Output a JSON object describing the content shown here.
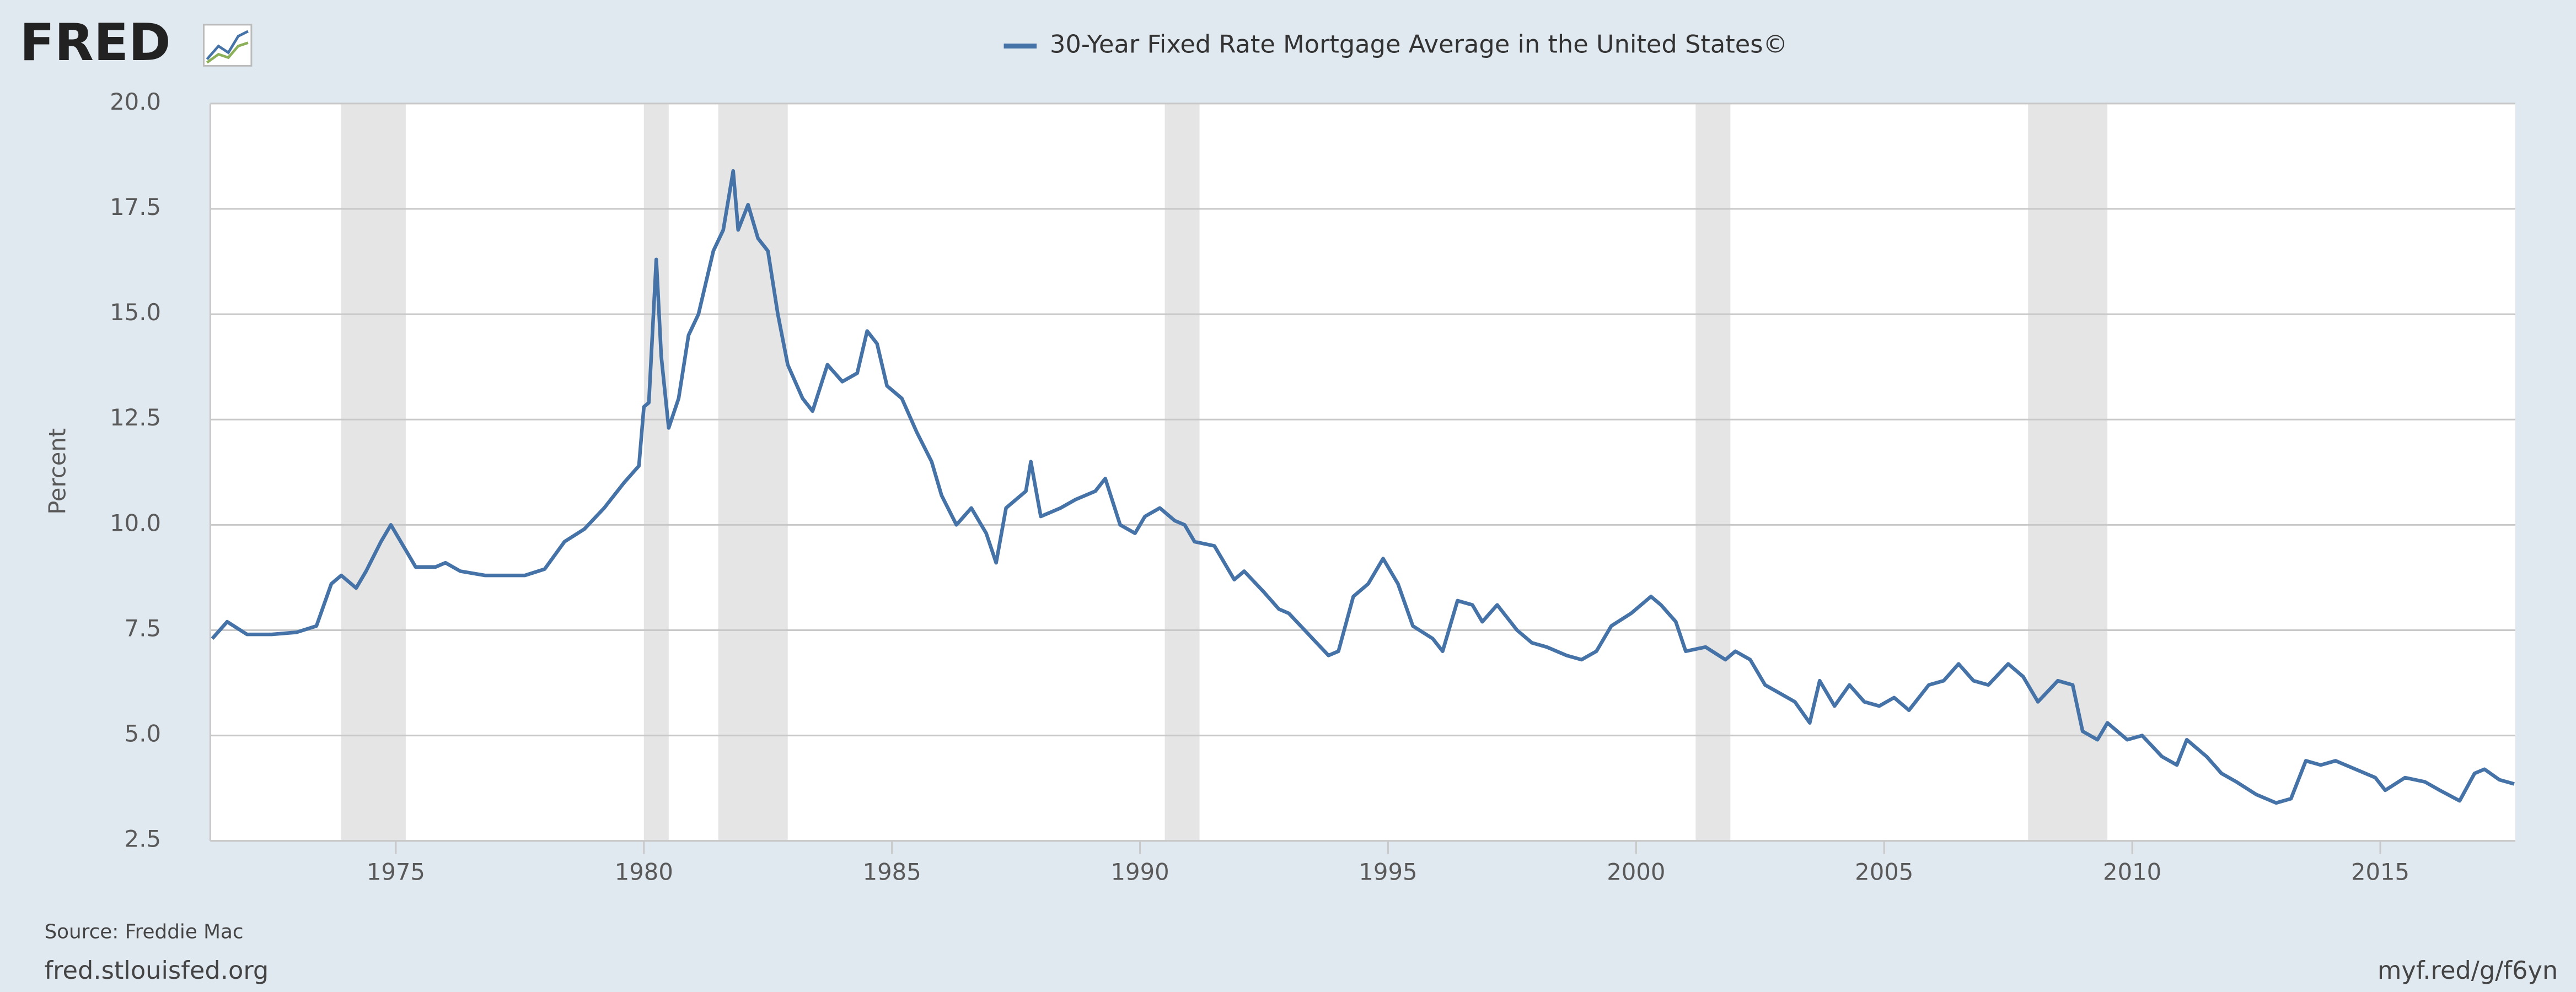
{
  "logo": "FRED",
  "chart_data": {
    "type": "line",
    "y_label": "Percent",
    "source": "Source: Freddie Mac",
    "site": "fred.stlouisfed.org",
    "short_url": "myf.red/g/f6yn",
    "xlim": [
      1971.26,
      2017.72
    ],
    "ylim": [
      2.5,
      20
    ],
    "xticks": [
      1975,
      1980,
      1985,
      1990,
      1995,
      2000,
      2005,
      2010,
      2015
    ],
    "yticks": [
      2.5,
      {
        "value": 5,
        "label": "5.0"
      },
      7.5,
      {
        "value": 10,
        "label": "10.0"
      },
      12.5,
      {
        "value": 15,
        "label": "15.0"
      },
      17.5,
      {
        "value": 20,
        "label": "20.0"
      }
    ],
    "grid": true,
    "recessions": [
      [
        1973.9,
        1975.2
      ],
      [
        1980.0,
        1980.5
      ],
      [
        1981.5,
        1982.9
      ],
      [
        1990.5,
        1991.2
      ],
      [
        2001.2,
        2001.9
      ],
      [
        2007.9,
        2009.5
      ]
    ],
    "x": [
      1971.3,
      1971.6,
      1972.0,
      1972.5,
      1973.0,
      1973.4,
      1973.7,
      1973.9,
      1974.2,
      1974.4,
      1974.7,
      1974.9,
      1975.1,
      1975.4,
      1975.8,
      1976.0,
      1976.3,
      1976.8,
      1977.2,
      1977.6,
      1978.0,
      1978.4,
      1978.8,
      1979.2,
      1979.6,
      1979.9,
      1980.0,
      1980.1,
      1980.25,
      1980.35,
      1980.5,
      1980.7,
      1980.9,
      1981.1,
      1981.4,
      1981.6,
      1981.8,
      1981.9,
      1982.1,
      1982.3,
      1982.5,
      1982.7,
      1982.9,
      1983.2,
      1983.4,
      1983.7,
      1984.0,
      1984.3,
      1984.5,
      1984.7,
      1984.9,
      1985.2,
      1985.5,
      1985.8,
      1986.0,
      1986.3,
      1986.6,
      1986.9,
      1987.1,
      1987.3,
      1987.7,
      1987.8,
      1988.0,
      1988.4,
      1988.7,
      1989.1,
      1989.3,
      1989.6,
      1989.9,
      1990.1,
      1990.4,
      1990.7,
      1990.9,
      1991.1,
      1991.5,
      1991.9,
      1992.1,
      1992.5,
      1992.8,
      1993.0,
      1993.4,
      1993.8,
      1994.0,
      1994.3,
      1994.6,
      1994.9,
      1995.2,
      1995.5,
      1995.9,
      1996.1,
      1996.4,
      1996.7,
      1996.9,
      1997.2,
      1997.6,
      1997.9,
      1998.2,
      1998.6,
      1998.9,
      1999.2,
      1999.5,
      1999.9,
      2000.3,
      2000.5,
      2000.8,
      2001.0,
      2001.4,
      2001.8,
      2002.0,
      2002.3,
      2002.6,
      2002.9,
      2003.2,
      2003.5,
      2003.7,
      2004.0,
      2004.3,
      2004.6,
      2004.9,
      2005.2,
      2005.5,
      2005.9,
      2006.2,
      2006.5,
      2006.8,
      2007.1,
      2007.5,
      2007.8,
      2008.1,
      2008.5,
      2008.8,
      2009.0,
      2009.3,
      2009.5,
      2009.9,
      2010.2,
      2010.6,
      2010.9,
      2011.1,
      2011.5,
      2011.8,
      2012.1,
      2012.5,
      2012.9,
      2013.2,
      2013.5,
      2013.8,
      2014.1,
      2014.5,
      2014.9,
      2015.1,
      2015.5,
      2015.9,
      2016.2,
      2016.6,
      2016.9,
      2017.1,
      2017.4,
      2017.7
    ],
    "series": [
      {
        "name": "30-Year Fixed Rate Mortgage Average in the United States©",
        "color": "#4572a7",
        "values": [
          7.3,
          7.7,
          7.4,
          7.4,
          7.45,
          7.6,
          8.6,
          8.8,
          8.5,
          8.9,
          9.6,
          10.0,
          9.6,
          9.0,
          9.0,
          9.1,
          8.9,
          8.8,
          8.8,
          8.8,
          8.95,
          9.6,
          9.9,
          10.4,
          11.0,
          11.4,
          12.8,
          12.9,
          16.3,
          14.0,
          12.3,
          13.0,
          14.5,
          15.0,
          16.5,
          17.0,
          18.4,
          17.0,
          17.6,
          16.8,
          16.5,
          15.0,
          13.8,
          13.0,
          12.7,
          13.8,
          13.4,
          13.6,
          14.6,
          14.3,
          13.3,
          13.0,
          12.2,
          11.5,
          10.7,
          10.0,
          10.4,
          9.8,
          9.1,
          10.4,
          10.8,
          11.5,
          10.2,
          10.4,
          10.6,
          10.8,
          11.1,
          10.0,
          9.8,
          10.2,
          10.4,
          10.1,
          10.0,
          9.6,
          9.5,
          8.7,
          8.9,
          8.4,
          8.0,
          7.9,
          7.4,
          6.9,
          7.0,
          8.3,
          8.6,
          9.2,
          8.6,
          7.6,
          7.3,
          7.0,
          8.2,
          8.1,
          7.7,
          8.1,
          7.5,
          7.2,
          7.1,
          6.9,
          6.8,
          7.0,
          7.6,
          7.9,
          8.3,
          8.1,
          7.7,
          7.0,
          7.1,
          6.8,
          7.0,
          6.8,
          6.2,
          6.0,
          5.8,
          5.3,
          6.3,
          5.7,
          6.2,
          5.8,
          5.7,
          5.9,
          5.6,
          6.2,
          6.3,
          6.7,
          6.3,
          6.2,
          6.7,
          6.4,
          5.8,
          6.3,
          6.2,
          5.1,
          4.9,
          5.3,
          4.9,
          5.0,
          4.5,
          4.3,
          4.9,
          4.5,
          4.1,
          3.9,
          3.6,
          3.4,
          3.5,
          4.4,
          4.3,
          4.4,
          4.2,
          4.0,
          3.7,
          4.0,
          3.9,
          3.7,
          3.45,
          4.1,
          4.2,
          3.95,
          3.85
        ]
      }
    ]
  }
}
